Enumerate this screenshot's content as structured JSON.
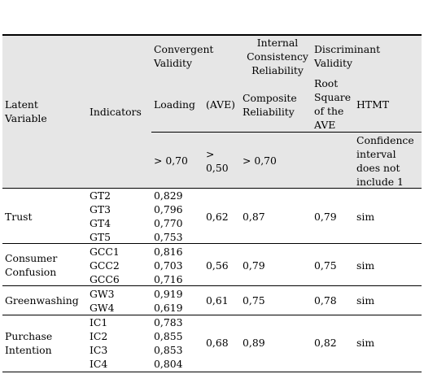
{
  "header": {
    "latent_variable": "Latent Variable",
    "indicators": "Indicators",
    "convergent_validity": "Convergent Validity",
    "internal_consistency": "Internal Consistency Reliability",
    "discriminant_validity": "Discriminant Validity",
    "loading": "Loading",
    "ave": "(AVE)",
    "composite_reliability": "Composite Reliability",
    "root_square_ave": "Root Square of the AVE",
    "htmt": "HTMT",
    "crit_loading": "> 0,70",
    "crit_ave": "> 0,50",
    "crit_cr": "> 0,70",
    "crit_htmt": "Confidence interval does not include 1"
  },
  "rows": [
    {
      "variable": "Trust",
      "indicators": [
        "GT2",
        "GT3",
        "GT4",
        "GT5"
      ],
      "loadings": [
        "0,829",
        "0,796",
        "0,770",
        "0,753"
      ],
      "ave": "0,62",
      "cr": "0,87",
      "root_ave": "0,79",
      "htmt": "sim"
    },
    {
      "variable": "Consumer Confusion",
      "indicators": [
        "GCC1",
        "GCC2",
        "GCC6"
      ],
      "loadings": [
        "0,816",
        "0,703",
        "0,716"
      ],
      "ave": "0,56",
      "cr": "0,79",
      "root_ave": "0,75",
      "htmt": "sim"
    },
    {
      "variable": "Greenwashing",
      "indicators": [
        "GW3",
        "GW4"
      ],
      "loadings": [
        "0,919",
        "0,619"
      ],
      "ave": "0,61",
      "cr": "0,75",
      "root_ave": "0,78",
      "htmt": "sim"
    },
    {
      "variable": "Purchase Intention",
      "indicators": [
        "IC1",
        "IC2",
        "IC3",
        "IC4"
      ],
      "loadings": [
        "0,783",
        "0,855",
        "0,853",
        "0,804"
      ],
      "ave": "0,68",
      "cr": "0,89",
      "root_ave": "0,82",
      "htmt": "sim"
    }
  ]
}
